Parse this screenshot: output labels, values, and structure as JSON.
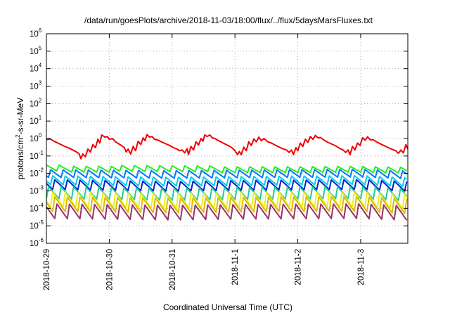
{
  "chart_data": {
    "type": "line",
    "title": "/data/run/goesPlots/archive/2018-11-03/18:00/flux/../flux/5daysMarsFluxes.txt",
    "xlabel": "Coordinated Universal Time (UTC)",
    "ylabel": "protons/cm²-s-sr-MeV",
    "ylabel_parts": {
      "prefix": "protons/cm",
      "sup": "2",
      "suffix": "-s-sr-MeV"
    },
    "yscale": "log",
    "ylim_exponents": [
      -6,
      6
    ],
    "y_ticks": [
      {
        "base": "10",
        "exp": "6"
      },
      {
        "base": "10",
        "exp": "5"
      },
      {
        "base": "10",
        "exp": "4"
      },
      {
        "base": "10",
        "exp": "3"
      },
      {
        "base": "10",
        "exp": "2"
      },
      {
        "base": "10",
        "exp": "1"
      },
      {
        "base": "10",
        "exp": "0"
      },
      {
        "base": "10",
        "exp": "-1"
      },
      {
        "base": "10",
        "exp": "-2"
      },
      {
        "base": "10",
        "exp": "-3"
      },
      {
        "base": "10",
        "exp": "-4"
      },
      {
        "base": "10",
        "exp": "-5"
      },
      {
        "base": "10",
        "exp": "-6"
      }
    ],
    "x_ticks": [
      "2018-10-29",
      "2018-10-30",
      "2018-10-31",
      "2018-11-1",
      "2018-11-2",
      "2018-11-3"
    ],
    "xlim_days": [
      0,
      5.75
    ],
    "grid": true,
    "legend": "none",
    "series": [
      {
        "color": "#ee0000",
        "points": [
          [
            0.0,
            0.85
          ],
          [
            0.06,
            0.95
          ],
          [
            0.12,
            0.7
          ],
          [
            0.18,
            0.55
          ],
          [
            0.25,
            0.42
          ],
          [
            0.3,
            0.34
          ],
          [
            0.36,
            0.28
          ],
          [
            0.42,
            0.22
          ],
          [
            0.48,
            0.17
          ],
          [
            0.52,
            0.13
          ],
          [
            0.55,
            0.07
          ],
          [
            0.58,
            0.13
          ],
          [
            0.62,
            0.09
          ],
          [
            0.66,
            0.25
          ],
          [
            0.7,
            0.17
          ],
          [
            0.74,
            0.45
          ],
          [
            0.78,
            0.3
          ],
          [
            0.82,
            0.9
          ],
          [
            0.85,
            0.55
          ],
          [
            0.88,
            1.6
          ],
          [
            0.93,
            1.2
          ],
          [
            0.97,
            1.3
          ],
          [
            1.0,
            0.9
          ],
          [
            1.05,
            1.0
          ],
          [
            1.1,
            0.65
          ],
          [
            1.15,
            0.5
          ],
          [
            1.2,
            0.38
          ],
          [
            1.24,
            0.3
          ],
          [
            1.27,
            0.17
          ],
          [
            1.3,
            0.25
          ],
          [
            1.34,
            0.13
          ],
          [
            1.38,
            0.35
          ],
          [
            1.42,
            0.2
          ],
          [
            1.46,
            0.7
          ],
          [
            1.5,
            0.45
          ],
          [
            1.54,
            1.1
          ],
          [
            1.57,
            0.75
          ],
          [
            1.6,
            1.7
          ],
          [
            1.64,
            1.2
          ],
          [
            1.68,
            1.3
          ],
          [
            1.72,
            0.9
          ],
          [
            1.78,
            0.8
          ],
          [
            1.84,
            0.62
          ],
          [
            1.9,
            0.5
          ],
          [
            1.96,
            0.4
          ],
          [
            2.02,
            0.3
          ],
          [
            2.08,
            0.25
          ],
          [
            2.12,
            0.2
          ],
          [
            2.16,
            0.22
          ],
          [
            2.2,
            0.15
          ],
          [
            2.24,
            0.26
          ],
          [
            2.26,
            0.12
          ],
          [
            2.3,
            0.35
          ],
          [
            2.34,
            0.22
          ],
          [
            2.38,
            0.65
          ],
          [
            2.42,
            0.42
          ],
          [
            2.46,
            1.0
          ],
          [
            2.49,
            0.7
          ],
          [
            2.52,
            1.6
          ],
          [
            2.56,
            1.3
          ],
          [
            2.6,
            1.6
          ],
          [
            2.64,
            1.1
          ],
          [
            2.68,
            1.0
          ],
          [
            2.74,
            0.75
          ],
          [
            2.8,
            0.58
          ],
          [
            2.86,
            0.45
          ],
          [
            2.92,
            0.35
          ],
          [
            2.96,
            0.28
          ],
          [
            3.0,
            0.2
          ],
          [
            3.04,
            0.12
          ],
          [
            3.07,
            0.18
          ],
          [
            3.1,
            0.12
          ],
          [
            3.14,
            0.32
          ],
          [
            3.18,
            0.2
          ],
          [
            3.22,
            0.65
          ],
          [
            3.26,
            0.4
          ],
          [
            3.3,
            0.95
          ],
          [
            3.34,
            0.65
          ],
          [
            3.38,
            1.2
          ],
          [
            3.42,
            0.75
          ],
          [
            3.46,
            1.0
          ],
          [
            3.52,
            0.65
          ],
          [
            3.58,
            0.55
          ],
          [
            3.64,
            0.42
          ],
          [
            3.7,
            0.33
          ],
          [
            3.76,
            0.26
          ],
          [
            3.82,
            0.22
          ],
          [
            3.86,
            0.16
          ],
          [
            3.9,
            0.22
          ],
          [
            3.93,
            0.12
          ],
          [
            3.97,
            0.3
          ],
          [
            4.0,
            0.2
          ],
          [
            4.04,
            0.55
          ],
          [
            4.08,
            0.35
          ],
          [
            4.12,
            0.9
          ],
          [
            4.16,
            0.6
          ],
          [
            4.2,
            1.3
          ],
          [
            4.24,
            0.9
          ],
          [
            4.28,
            1.5
          ],
          [
            4.32,
            1.1
          ],
          [
            4.36,
            1.15
          ],
          [
            4.42,
            0.8
          ],
          [
            4.48,
            0.6
          ],
          [
            4.54,
            0.48
          ],
          [
            4.6,
            0.38
          ],
          [
            4.66,
            0.28
          ],
          [
            4.72,
            0.22
          ],
          [
            4.76,
            0.16
          ],
          [
            4.8,
            0.22
          ],
          [
            4.83,
            0.12
          ],
          [
            4.87,
            0.35
          ],
          [
            4.91,
            0.22
          ],
          [
            4.95,
            0.55
          ],
          [
            4.99,
            0.4
          ],
          [
            5.03,
            1.1
          ],
          [
            5.07,
            0.8
          ],
          [
            5.11,
            1.25
          ],
          [
            5.15,
            0.85
          ],
          [
            5.2,
            0.85
          ],
          [
            5.26,
            0.62
          ],
          [
            5.32,
            0.48
          ],
          [
            5.38,
            0.38
          ],
          [
            5.44,
            0.3
          ],
          [
            5.5,
            0.24
          ],
          [
            5.56,
            0.2
          ],
          [
            5.6,
            0.14
          ],
          [
            5.64,
            0.22
          ],
          [
            5.68,
            0.15
          ],
          [
            5.72,
            0.45
          ],
          [
            5.75,
            0.25
          ]
        ]
      },
      {
        "color": "#22ee22",
        "period": 0.2,
        "phase": 0.0,
        "base": [
          [
            0,
            0.03
          ],
          [
            0.8,
            0.03
          ],
          [
            1.6,
            0.028
          ],
          [
            2.4,
            0.027
          ],
          [
            3.2,
            0.028
          ],
          [
            4.0,
            0.028
          ],
          [
            4.8,
            0.03
          ],
          [
            5.75,
            0.026
          ]
        ],
        "drop_factor": 0.4
      },
      {
        "color": "#0077ff",
        "period": 0.2,
        "phase": 0.05,
        "base": [
          [
            0,
            0.018
          ],
          [
            1.0,
            0.017
          ],
          [
            2.0,
            0.016
          ],
          [
            3.0,
            0.017
          ],
          [
            4.0,
            0.018
          ],
          [
            5.0,
            0.019
          ],
          [
            5.75,
            0.015
          ]
        ],
        "drop_factor": 0.3
      },
      {
        "color": "#00ccee",
        "period": 0.2,
        "phase": 0.09,
        "base": [
          [
            0,
            0.008
          ],
          [
            1.0,
            0.007
          ],
          [
            2.0,
            0.0065
          ],
          [
            3.0,
            0.007
          ],
          [
            4.0,
            0.0075
          ],
          [
            5.0,
            0.008
          ],
          [
            5.75,
            0.006
          ]
        ],
        "drop_factor": 0.25
      },
      {
        "color": "#0022cc",
        "period": 0.2,
        "phase": 0.13,
        "base": [
          [
            0,
            0.0045
          ],
          [
            1.0,
            0.004
          ],
          [
            2.0,
            0.0035
          ],
          [
            3.0,
            0.004
          ],
          [
            4.0,
            0.0042
          ],
          [
            5.0,
            0.0045
          ],
          [
            5.75,
            0.0035
          ]
        ],
        "drop_factor": 0.22
      },
      {
        "color": "#22cc99",
        "period": 0.2,
        "phase": 0.02,
        "base": [
          [
            0,
            0.002
          ],
          [
            1.0,
            0.0018
          ],
          [
            2.0,
            0.0016
          ],
          [
            3.0,
            0.0018
          ],
          [
            4.0,
            0.0019
          ],
          [
            5.0,
            0.002
          ],
          [
            5.75,
            0.0015
          ]
        ],
        "drop_factor": 0.15
      },
      {
        "color": "#eeee22",
        "period": 0.2,
        "phase": 0.07,
        "base": [
          [
            0,
            0.0012
          ],
          [
            1.0,
            0.0011
          ],
          [
            2.0,
            0.001
          ],
          [
            3.0,
            0.0011
          ],
          [
            4.0,
            0.0012
          ],
          [
            5.0,
            0.0012
          ],
          [
            5.75,
            0.0009
          ]
        ],
        "drop_factor": 0.1
      },
      {
        "color": "#ddbb00",
        "period": 0.2,
        "phase": 0.11,
        "base": [
          [
            0,
            0.0006
          ],
          [
            1.0,
            0.00055
          ],
          [
            2.0,
            0.0005
          ],
          [
            3.0,
            0.00055
          ],
          [
            4.0,
            0.0006
          ],
          [
            5.0,
            0.0006
          ],
          [
            5.75,
            0.00045
          ]
        ],
        "drop_factor": 0.1
      },
      {
        "color": "#993366",
        "period": 0.2,
        "phase": 0.15,
        "base": [
          [
            0,
            0.00022
          ],
          [
            1.0,
            0.0002
          ],
          [
            2.0,
            0.00018
          ],
          [
            3.0,
            0.0002
          ],
          [
            4.0,
            0.00021
          ],
          [
            5.0,
            0.00022
          ],
          [
            5.75,
            0.00017
          ]
        ],
        "drop_factor": 0.1
      }
    ]
  }
}
